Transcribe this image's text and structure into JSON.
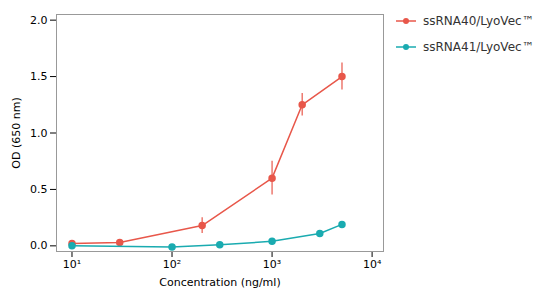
{
  "chart_data": {
    "type": "line",
    "xlabel": "Concentration (ng/ml)",
    "ylabel": "OD (650 nm)",
    "log": "x",
    "grid": false,
    "legend": "right",
    "marker": "circle",
    "line_style": "solid",
    "xlim": [
      7,
      13000
    ],
    "xticks": [
      {
        "value": 10,
        "label": "10¹"
      },
      {
        "value": 100,
        "label": "10²"
      },
      {
        "value": 1000,
        "label": "10³"
      },
      {
        "value": 10000,
        "label": "10⁴"
      }
    ],
    "ylim": [
      -0.05,
      2.05
    ],
    "yticks": [
      {
        "value": 0.0,
        "label": "0.0"
      },
      0.5,
      {
        "value": 1.0,
        "label": "1.0"
      },
      1.5,
      {
        "value": 2.0,
        "label": "2.0"
      }
    ],
    "series": [
      {
        "name": "ssRNA40/LyoVec™",
        "color": "#E8574A",
        "x": [
          10,
          30,
          200,
          1000,
          2000,
          5000
        ],
        "values": [
          0.02,
          0.03,
          0.18,
          0.6,
          1.25,
          1.5
        ],
        "yerr": [
          0.01,
          0.01,
          0.07,
          0.15,
          0.1,
          0.12
        ]
      },
      {
        "name": "ssRNA41/LyoVec™",
        "color": "#1AABB0",
        "x": [
          10,
          100,
          300,
          1000,
          3000,
          5000
        ],
        "values": [
          0.0,
          -0.01,
          0.01,
          0.04,
          0.11,
          0.19
        ],
        "yerr": [
          0.005,
          0.005,
          0.01,
          0.01,
          0.015,
          0.02
        ]
      }
    ]
  }
}
